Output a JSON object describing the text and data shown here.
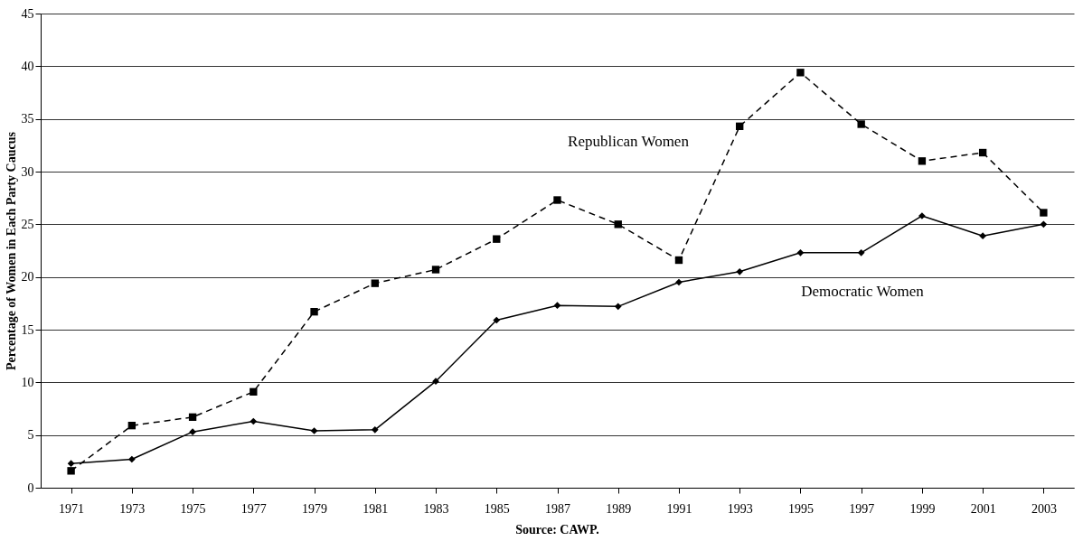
{
  "chart_data": {
    "type": "line",
    "ylabel": "Percentage of Women in Each Party Caucus",
    "categories": [
      "1971",
      "1973",
      "1975",
      "1977",
      "1979",
      "1981",
      "1983",
      "1985",
      "1987",
      "1989",
      "1991",
      "1993",
      "1995",
      "1997",
      "1999",
      "2001",
      "2003"
    ],
    "series": [
      {
        "color": "#000000",
        "marker": "square",
        "line_style": "dashed",
        "values": [
          1.6,
          5.9,
          6.7,
          9.1,
          16.7,
          19.4,
          20.7,
          23.6,
          27.3,
          25.0,
          21.6,
          34.3,
          39.4,
          34.5,
          31.0,
          31.8,
          26.1
        ]
      },
      {
        "color": "#000000",
        "marker": "diamond",
        "line_style": "solid",
        "values": [
          2.3,
          2.7,
          5.3,
          6.3,
          5.4,
          5.5,
          10.1,
          15.9,
          17.3,
          17.2,
          19.5,
          20.5,
          22.3,
          22.3,
          25.8,
          23.9,
          25.0
        ]
      }
    ],
    "ylim": [
      0,
      45
    ],
    "yticks": [
      0,
      5,
      10,
      15,
      20,
      25,
      30,
      35,
      40,
      45
    ],
    "grid": "y",
    "annotations": [
      "Republican Women",
      "Democratic Women",
      "Source:  CAWP."
    ]
  }
}
